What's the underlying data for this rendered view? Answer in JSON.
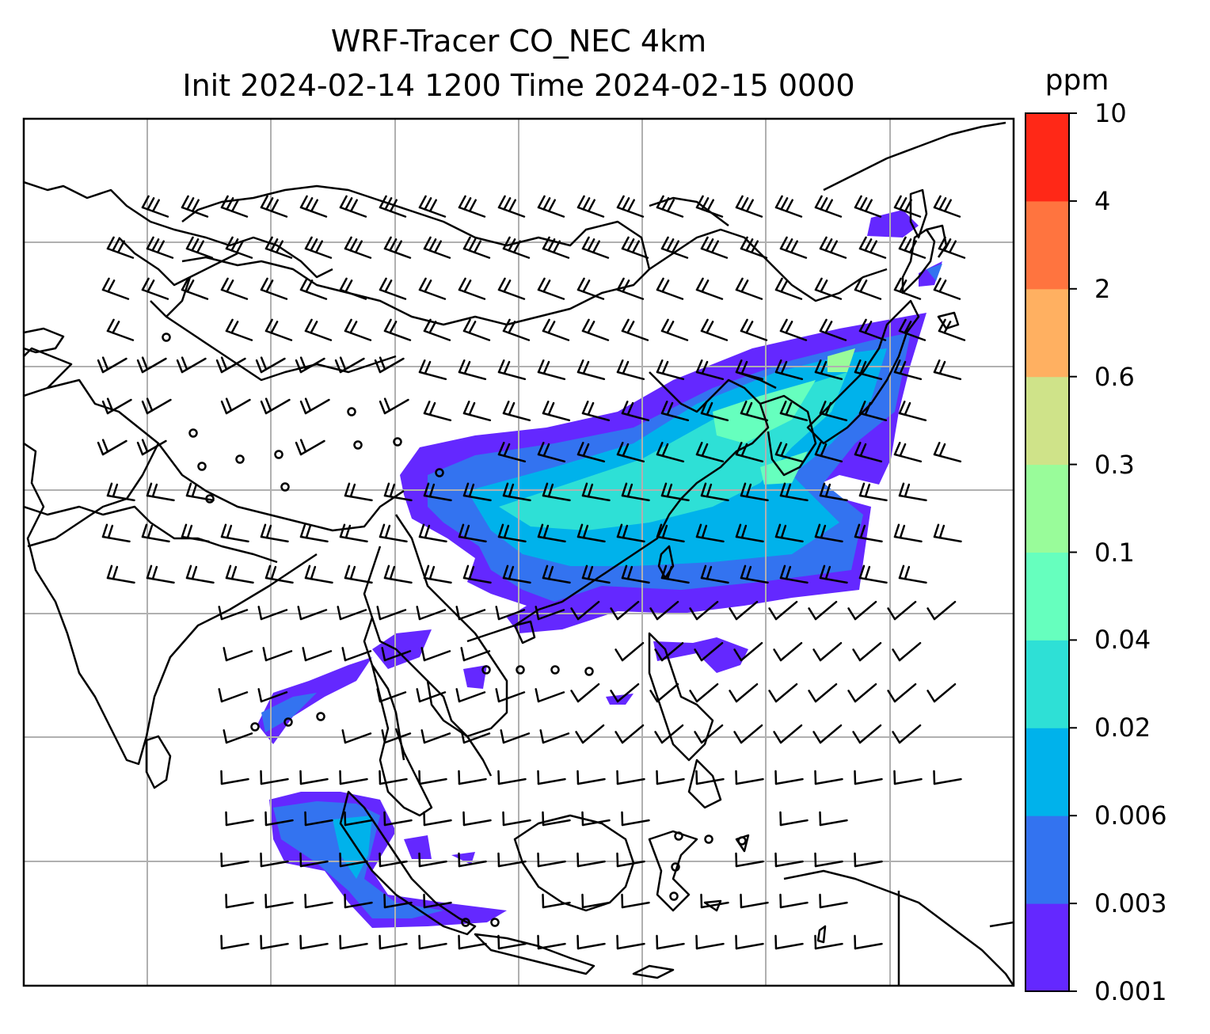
{
  "title_line1": "WRF-Tracer CO_NEC 4km",
  "title_line2": "Init 2024-02-14 1200 Time 2024-02-15 0000",
  "colorbar": {
    "unit": "ppm",
    "levels": [
      "0.001",
      "0.003",
      "0.006",
      "0.02",
      "0.04",
      "0.1",
      "0.3",
      "0.6",
      "2",
      "4",
      "10"
    ],
    "colors": [
      "#6428ff",
      "#3373f0",
      "#00b2eb",
      "#2ee0d6",
      "#66ffbe",
      "#99fc9a",
      "#cfe389",
      "#ffb061",
      "#ff743f",
      "#ff2817"
    ]
  },
  "map": {
    "gridlines": true,
    "coastlines": true,
    "borders": true,
    "wind_barbs": true,
    "calm_markers": true,
    "line_color": "#000000",
    "grid_color": "#b0b0b0"
  }
}
